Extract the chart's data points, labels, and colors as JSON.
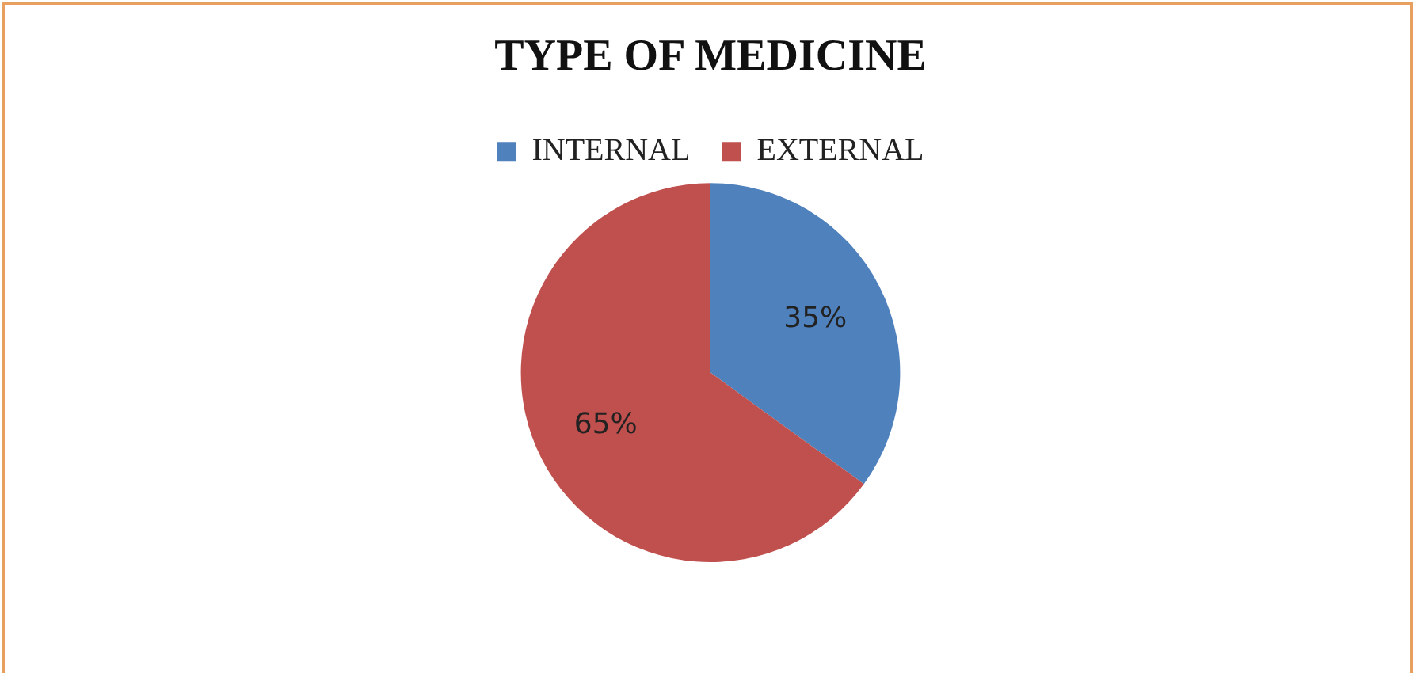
{
  "chart_data": {
    "type": "pie",
    "title": "TYPE OF MEDICINE",
    "categories": [
      "INTERNAL",
      "EXTERNAL"
    ],
    "values": [
      35,
      65
    ],
    "colors": [
      "#4f81bd",
      "#c0504d"
    ],
    "value_labels": [
      "35%",
      "65%"
    ],
    "legend": "top"
  }
}
